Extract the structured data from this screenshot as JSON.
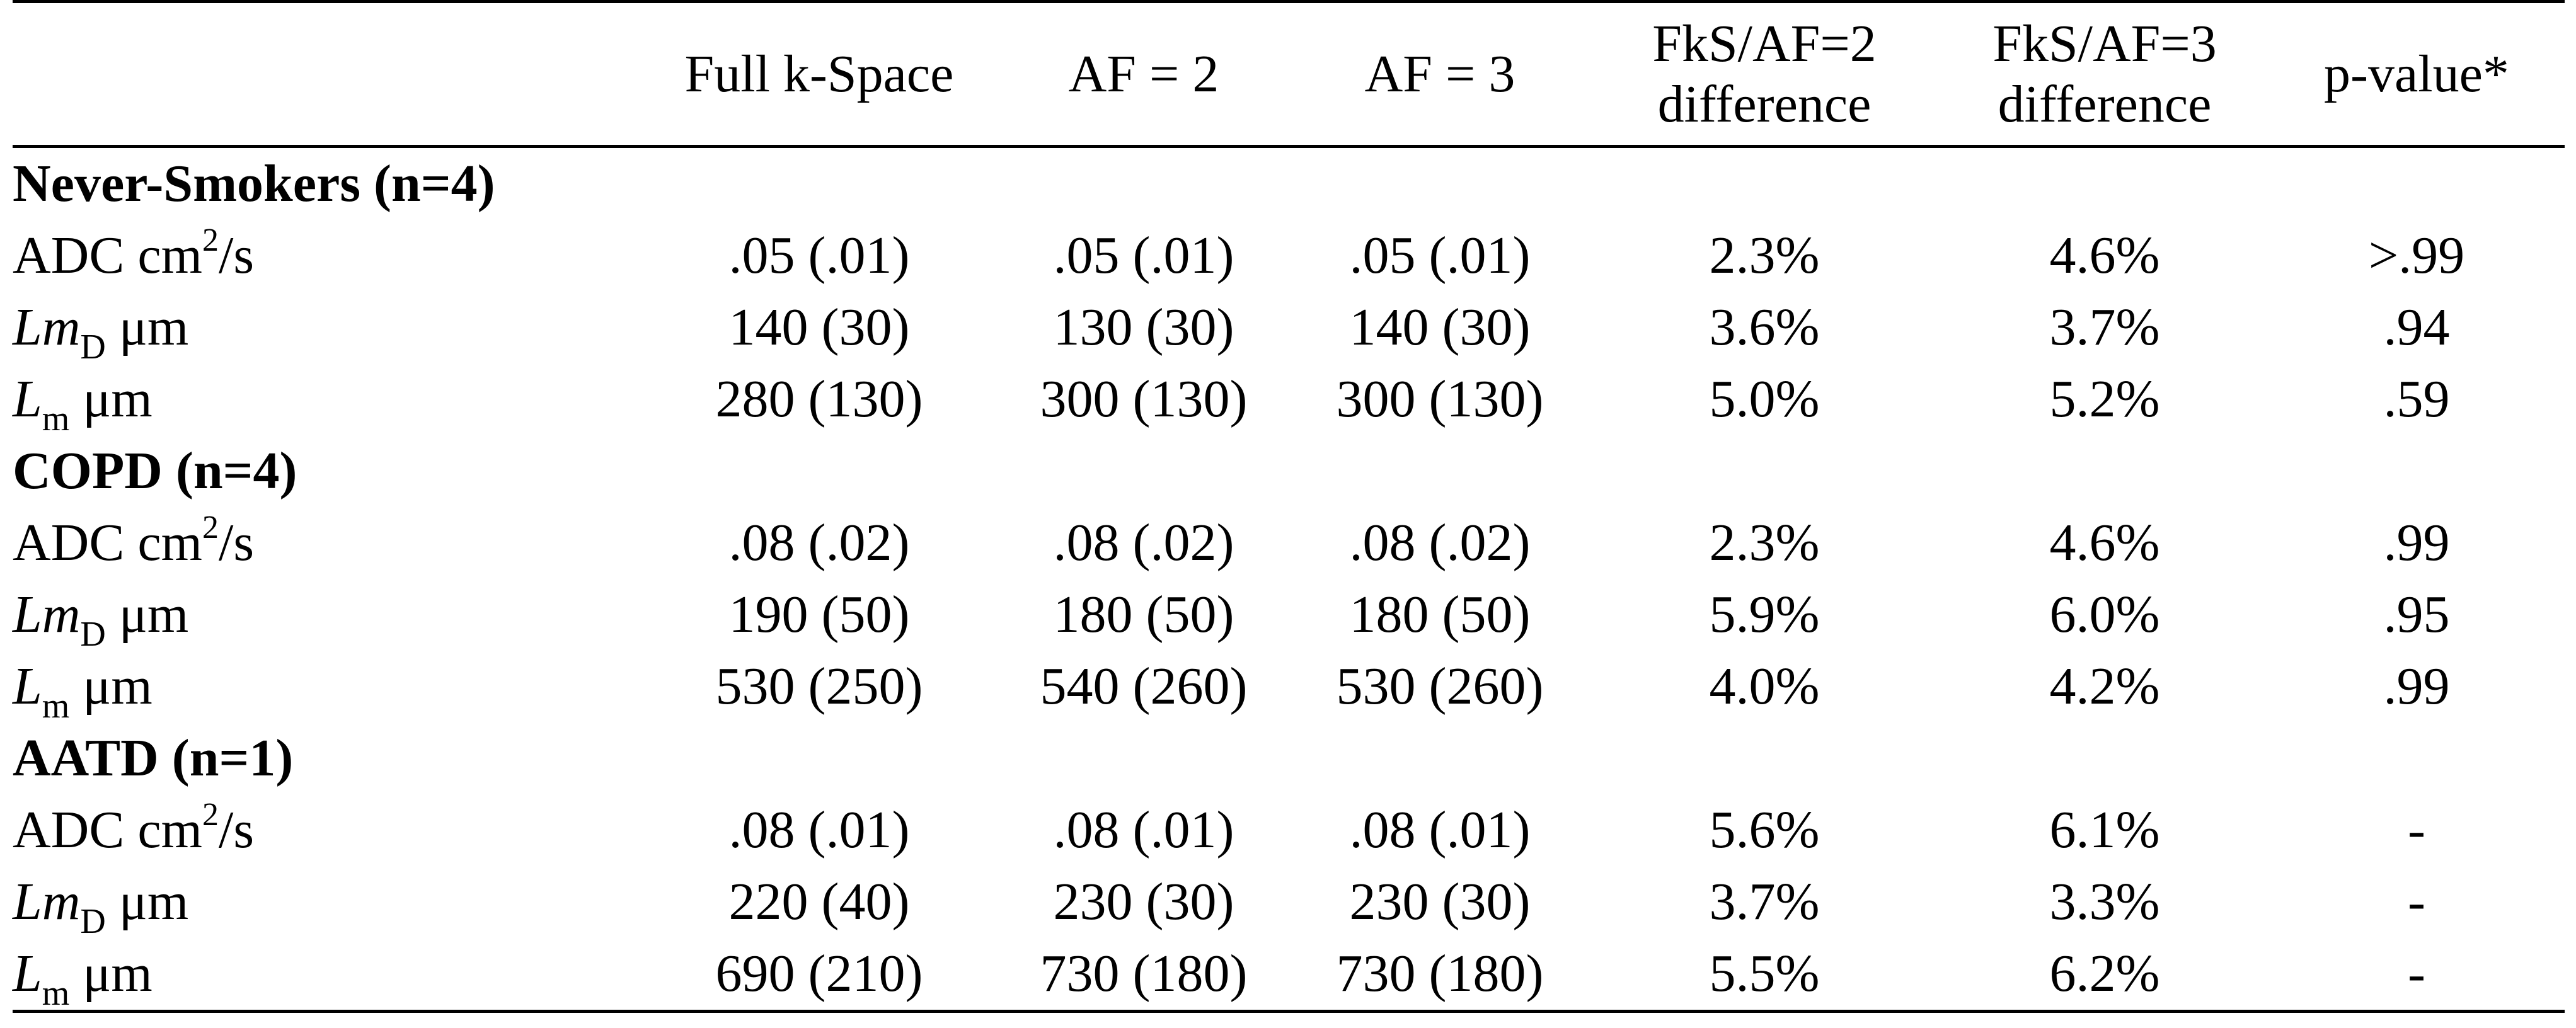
{
  "table": {
    "header": {
      "col0": "",
      "col1": "Full k-Space",
      "col2": "AF = 2",
      "col3": "AF = 3",
      "col4_line1": "FkS/AF=2",
      "col4_line2": "difference",
      "col5_line1": "FkS/AF=3",
      "col5_line2": "difference",
      "col6": "p-value*"
    },
    "groups": [
      {
        "title": "Never-Smokers (n=4)",
        "rows": [
          {
            "m1": "ADC cm",
            "sup": "2",
            "m2": "/s",
            "full": ".05 (.01)",
            "af2": ".05 (.01)",
            "af3": ".05 (.01)",
            "d2": "2.3%",
            "d3": "4.6%",
            "p": ">.99"
          },
          {
            "m1": "Lm",
            "sub": "D",
            "m2": " μm",
            "full": "140 (30)",
            "af2": "130 (30)",
            "af3": "140 (30)",
            "d2": "3.6%",
            "d3": "3.7%",
            "p": ".94"
          },
          {
            "m1": "L",
            "sub": "m",
            "m2": " μm",
            "full": "280 (130)",
            "af2": "300 (130)",
            "af3": "300 (130)",
            "d2": "5.0%",
            "d3": "5.2%",
            "p": ".59"
          }
        ]
      },
      {
        "title": "COPD (n=4)",
        "rows": [
          {
            "m1": "ADC cm",
            "sup": "2",
            "m2": "/s",
            "full": ".08 (.02)",
            "af2": ".08 (.02)",
            "af3": ".08 (.02)",
            "d2": "2.3%",
            "d3": "4.6%",
            "p": ".99"
          },
          {
            "m1": "Lm",
            "sub": "D",
            "m2": " μm",
            "full": "190 (50)",
            "af2": "180 (50)",
            "af3": "180 (50)",
            "d2": "5.9%",
            "d3": "6.0%",
            "p": ".95"
          },
          {
            "m1": "L",
            "sub": "m",
            "m2": " μm",
            "full": "530 (250)",
            "af2": "540 (260)",
            "af3": "530 (260)",
            "d2": "4.0%",
            "d3": "4.2%",
            "p": ".99"
          }
        ]
      },
      {
        "title": "AATD (n=1)",
        "rows": [
          {
            "m1": "ADC cm",
            "sup": "2",
            "m2": "/s",
            "full": ".08 (.01)",
            "af2": ".08 (.01)",
            "af3": ".08 (.01)",
            "d2": "5.6%",
            "d3": "6.1%",
            "p": "-"
          },
          {
            "m1": "Lm",
            "sub": "D",
            "m2": " μm",
            "full": "220 (40)",
            "af2": "230 (30)",
            "af3": "230 (30)",
            "d2": "3.7%",
            "d3": "3.3%",
            "p": "-"
          },
          {
            "m1": "L",
            "sub": "m",
            "m2": " μm",
            "full": "690 (210)",
            "af2": "730 (180)",
            "af3": "730 (180)",
            "d2": "5.5%",
            "d3": "6.2%",
            "p": "-"
          }
        ]
      }
    ]
  }
}
